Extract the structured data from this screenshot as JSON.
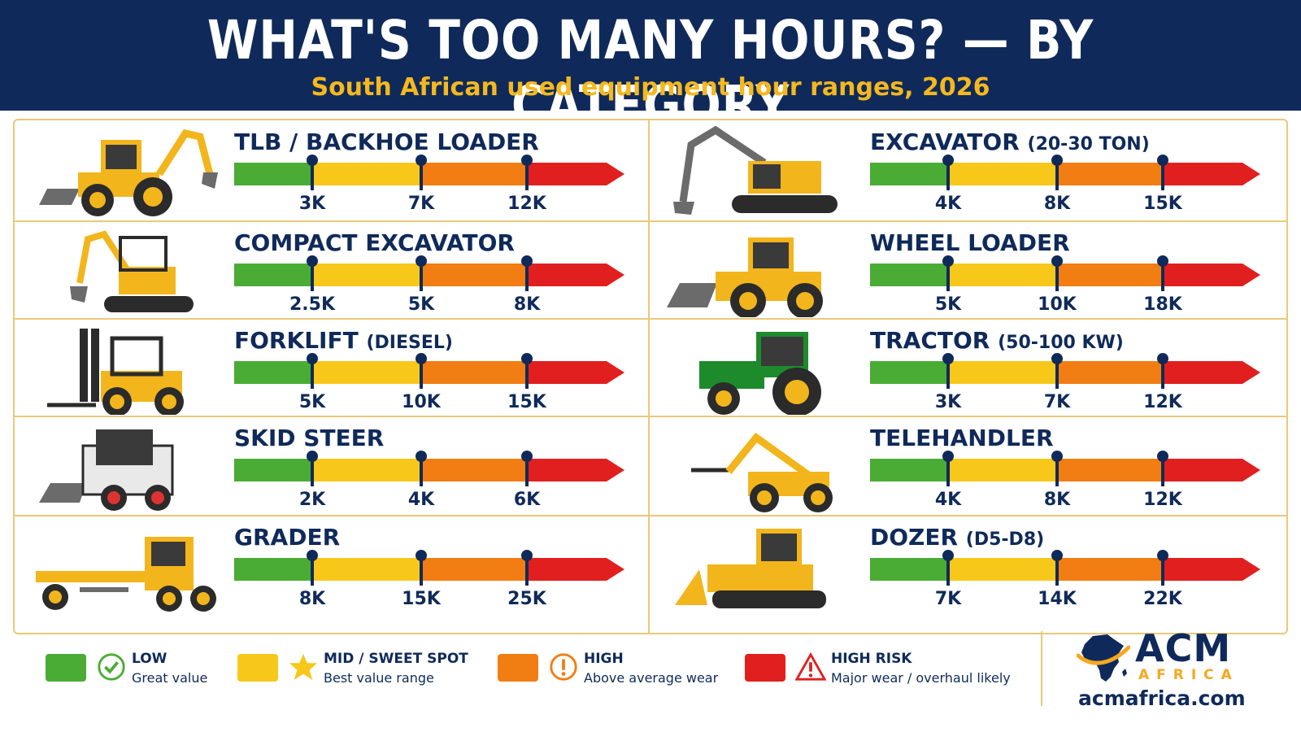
{
  "header": {
    "title": "WHAT'S TOO MANY HOURS? — BY CATEGORY",
    "subtitle": "South African used equipment hour ranges, 2026"
  },
  "colors": {
    "navy": "#0f2a5a",
    "gold": "#f5b81e",
    "green": "#4aac35",
    "yellow": "#f7c81a",
    "orange": "#f27d12",
    "red": "#e21f1f"
  },
  "categories": [
    {
      "title": "TLB / BACKHOE LOADER",
      "subtitle": "",
      "icon": "backhoe-loader-icon",
      "ticks": [
        "3K",
        "7K",
        "12K"
      ],
      "values": [
        3000,
        7000,
        12000
      ]
    },
    {
      "title": "EXCAVATOR",
      "subtitle": "(20-30 TON)",
      "icon": "excavator-icon",
      "ticks": [
        "4K",
        "8K",
        "15K"
      ],
      "values": [
        4000,
        8000,
        15000
      ]
    },
    {
      "title": "COMPACT EXCAVATOR",
      "subtitle": "",
      "icon": "compact-excavator-icon",
      "ticks": [
        "2.5K",
        "5K",
        "8K"
      ],
      "values": [
        2500,
        5000,
        8000
      ]
    },
    {
      "title": "WHEEL LOADER",
      "subtitle": "",
      "icon": "wheel-loader-icon",
      "ticks": [
        "5K",
        "10K",
        "18K"
      ],
      "values": [
        5000,
        10000,
        18000
      ]
    },
    {
      "title": "FORKLIFT",
      "subtitle": "(DIESEL)",
      "icon": "forklift-icon",
      "ticks": [
        "5K",
        "10K",
        "15K"
      ],
      "values": [
        5000,
        10000,
        15000
      ]
    },
    {
      "title": "TRACTOR",
      "subtitle": "(50-100 KW)",
      "icon": "tractor-icon",
      "ticks": [
        "3K",
        "7K",
        "12K"
      ],
      "values": [
        3000,
        7000,
        12000
      ]
    },
    {
      "title": "SKID STEER",
      "subtitle": "",
      "icon": "skid-steer-icon",
      "ticks": [
        "2K",
        "4K",
        "6K"
      ],
      "values": [
        2000,
        4000,
        6000
      ]
    },
    {
      "title": "TELEHANDLER",
      "subtitle": "",
      "icon": "telehandler-icon",
      "ticks": [
        "4K",
        "8K",
        "12K"
      ],
      "values": [
        4000,
        8000,
        12000
      ]
    },
    {
      "title": "GRADER",
      "subtitle": "",
      "icon": "grader-icon",
      "ticks": [
        "8K",
        "15K",
        "25K"
      ],
      "values": [
        8000,
        15000,
        25000
      ]
    },
    {
      "title": "DOZER",
      "subtitle": "(D5-D8)",
      "icon": "dozer-icon",
      "ticks": [
        "7K",
        "14K",
        "22K"
      ],
      "values": [
        7000,
        14000,
        22000
      ]
    }
  ],
  "legend": [
    {
      "label": "LOW",
      "desc": "Great value",
      "color": "#4aac35",
      "icon": "check-circle-icon"
    },
    {
      "label": "MID / SWEET SPOT",
      "desc": "Best value range",
      "color": "#f7c81a",
      "icon": "star-icon"
    },
    {
      "label": "HIGH",
      "desc": "Above average wear",
      "color": "#f27d12",
      "icon": "exclamation-circle-icon"
    },
    {
      "label": "HIGH RISK",
      "desc": "Major wear / overhaul likely",
      "color": "#e21f1f",
      "icon": "warning-triangle-icon"
    }
  ],
  "brand": {
    "name": "ACM",
    "sub": "AFRICA",
    "url": "acmafrica.com"
  }
}
